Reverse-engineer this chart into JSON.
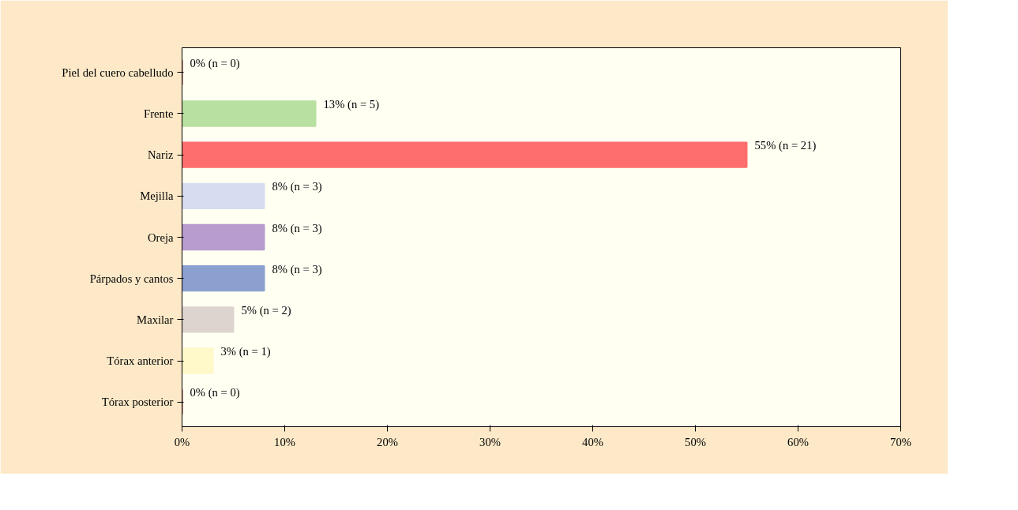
{
  "chart_data": {
    "type": "bar",
    "orientation": "horizontal",
    "categories": [
      "Piel del cuero cabelludo",
      "Frente",
      "Nariz",
      "Mejilla",
      "Oreja",
      "Párpados y cantos",
      "Maxilar",
      "Tórax anterior",
      "Tórax posterior"
    ],
    "values": [
      0,
      13,
      55,
      8,
      8,
      8,
      5,
      3,
      0
    ],
    "colors": [
      "#a0392f",
      "#b8e0a0",
      "#ff6e6e",
      "#d8dcf0",
      "#b89cd0",
      "#8ca0d0",
      "#ddd4d0",
      "#fff8c8",
      "#a0392f"
    ],
    "value_labels": [
      "0% (n = 0)",
      "13% (n = 5)",
      "55% (n = 21)",
      "8% (n = 3)",
      "8% (n = 3)",
      "8% (n = 3)",
      "5% (n = 2)",
      "3% (n = 1)",
      "0% (n = 0)"
    ],
    "xlim": [
      0,
      70
    ],
    "xticks": [
      {
        "value": 0,
        "label": "0%"
      },
      {
        "value": 10,
        "label": "10%"
      },
      {
        "value": 20,
        "label": "20%"
      },
      {
        "value": 30,
        "label": "30%"
      },
      {
        "value": 40,
        "label": "40%"
      },
      {
        "value": 50,
        "label": "50%"
      },
      {
        "value": 60,
        "label": "60%"
      },
      {
        "value": 70,
        "label": "70%"
      }
    ],
    "grid": false
  }
}
